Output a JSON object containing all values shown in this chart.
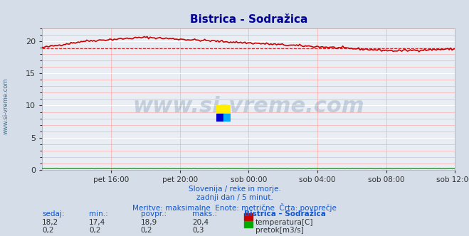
{
  "title": "Bistrica - Sodražica",
  "title_color": "#000099",
  "bg_color": "#d4dde8",
  "plot_bg_color": "#e8eef4",
  "grid_color_major": "#ffffff",
  "grid_color_minor": "#ffaaaa",
  "x_labels": [
    "pet 16:00",
    "pet 20:00",
    "sob 00:00",
    "sob 04:00",
    "sob 08:00",
    "sob 12:00"
  ],
  "ylim": [
    0,
    22
  ],
  "yticks": [
    0,
    5,
    10,
    15,
    20
  ],
  "temp_avg": 18.9,
  "temp_color": "#cc0000",
  "flow_color": "#00aa00",
  "watermark": "www.si-vreme.com",
  "watermark_color": "#1a3a6e",
  "sub_line1": "Slovenija / reke in morje.",
  "sub_line2": "zadnji dan / 5 minut.",
  "sub_line3": "Meritve: maksimalne  Enote: metrične  Črta: povprečje",
  "sub_color": "#1155cc",
  "table_headers": [
    "sedaj:",
    "min.:",
    "povpr.:",
    "maks.:",
    "Bistrica – Sodražica"
  ],
  "table_row1": [
    "18,2",
    "17,4",
    "18,9",
    "20,4"
  ],
  "table_row2": [
    "0,2",
    "0,2",
    "0,2",
    "0,3"
  ],
  "label_temp": "temperatura[C]",
  "label_flow": "pretok[m3/s]",
  "ylabel_text": "www.si-vreme.com",
  "ylabel_color": "#1a5276",
  "n_points": 288
}
